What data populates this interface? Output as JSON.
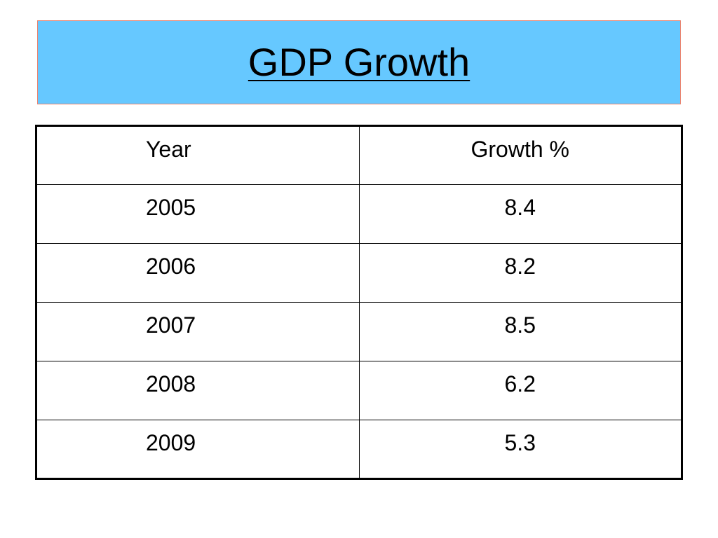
{
  "slide": {
    "title": "GDP Growth",
    "title_background": "#66c8ff",
    "title_border": "#e8836f"
  },
  "table": {
    "headers": [
      "Year",
      "Growth %"
    ],
    "rows": [
      {
        "year": "2005",
        "growth": "8.4"
      },
      {
        "year": "2006",
        "growth": "8.2"
      },
      {
        "year": "2007",
        "growth": "8.5"
      },
      {
        "year": "2008",
        "growth": "6.2"
      },
      {
        "year": "2009",
        "growth": "5.3"
      }
    ]
  }
}
